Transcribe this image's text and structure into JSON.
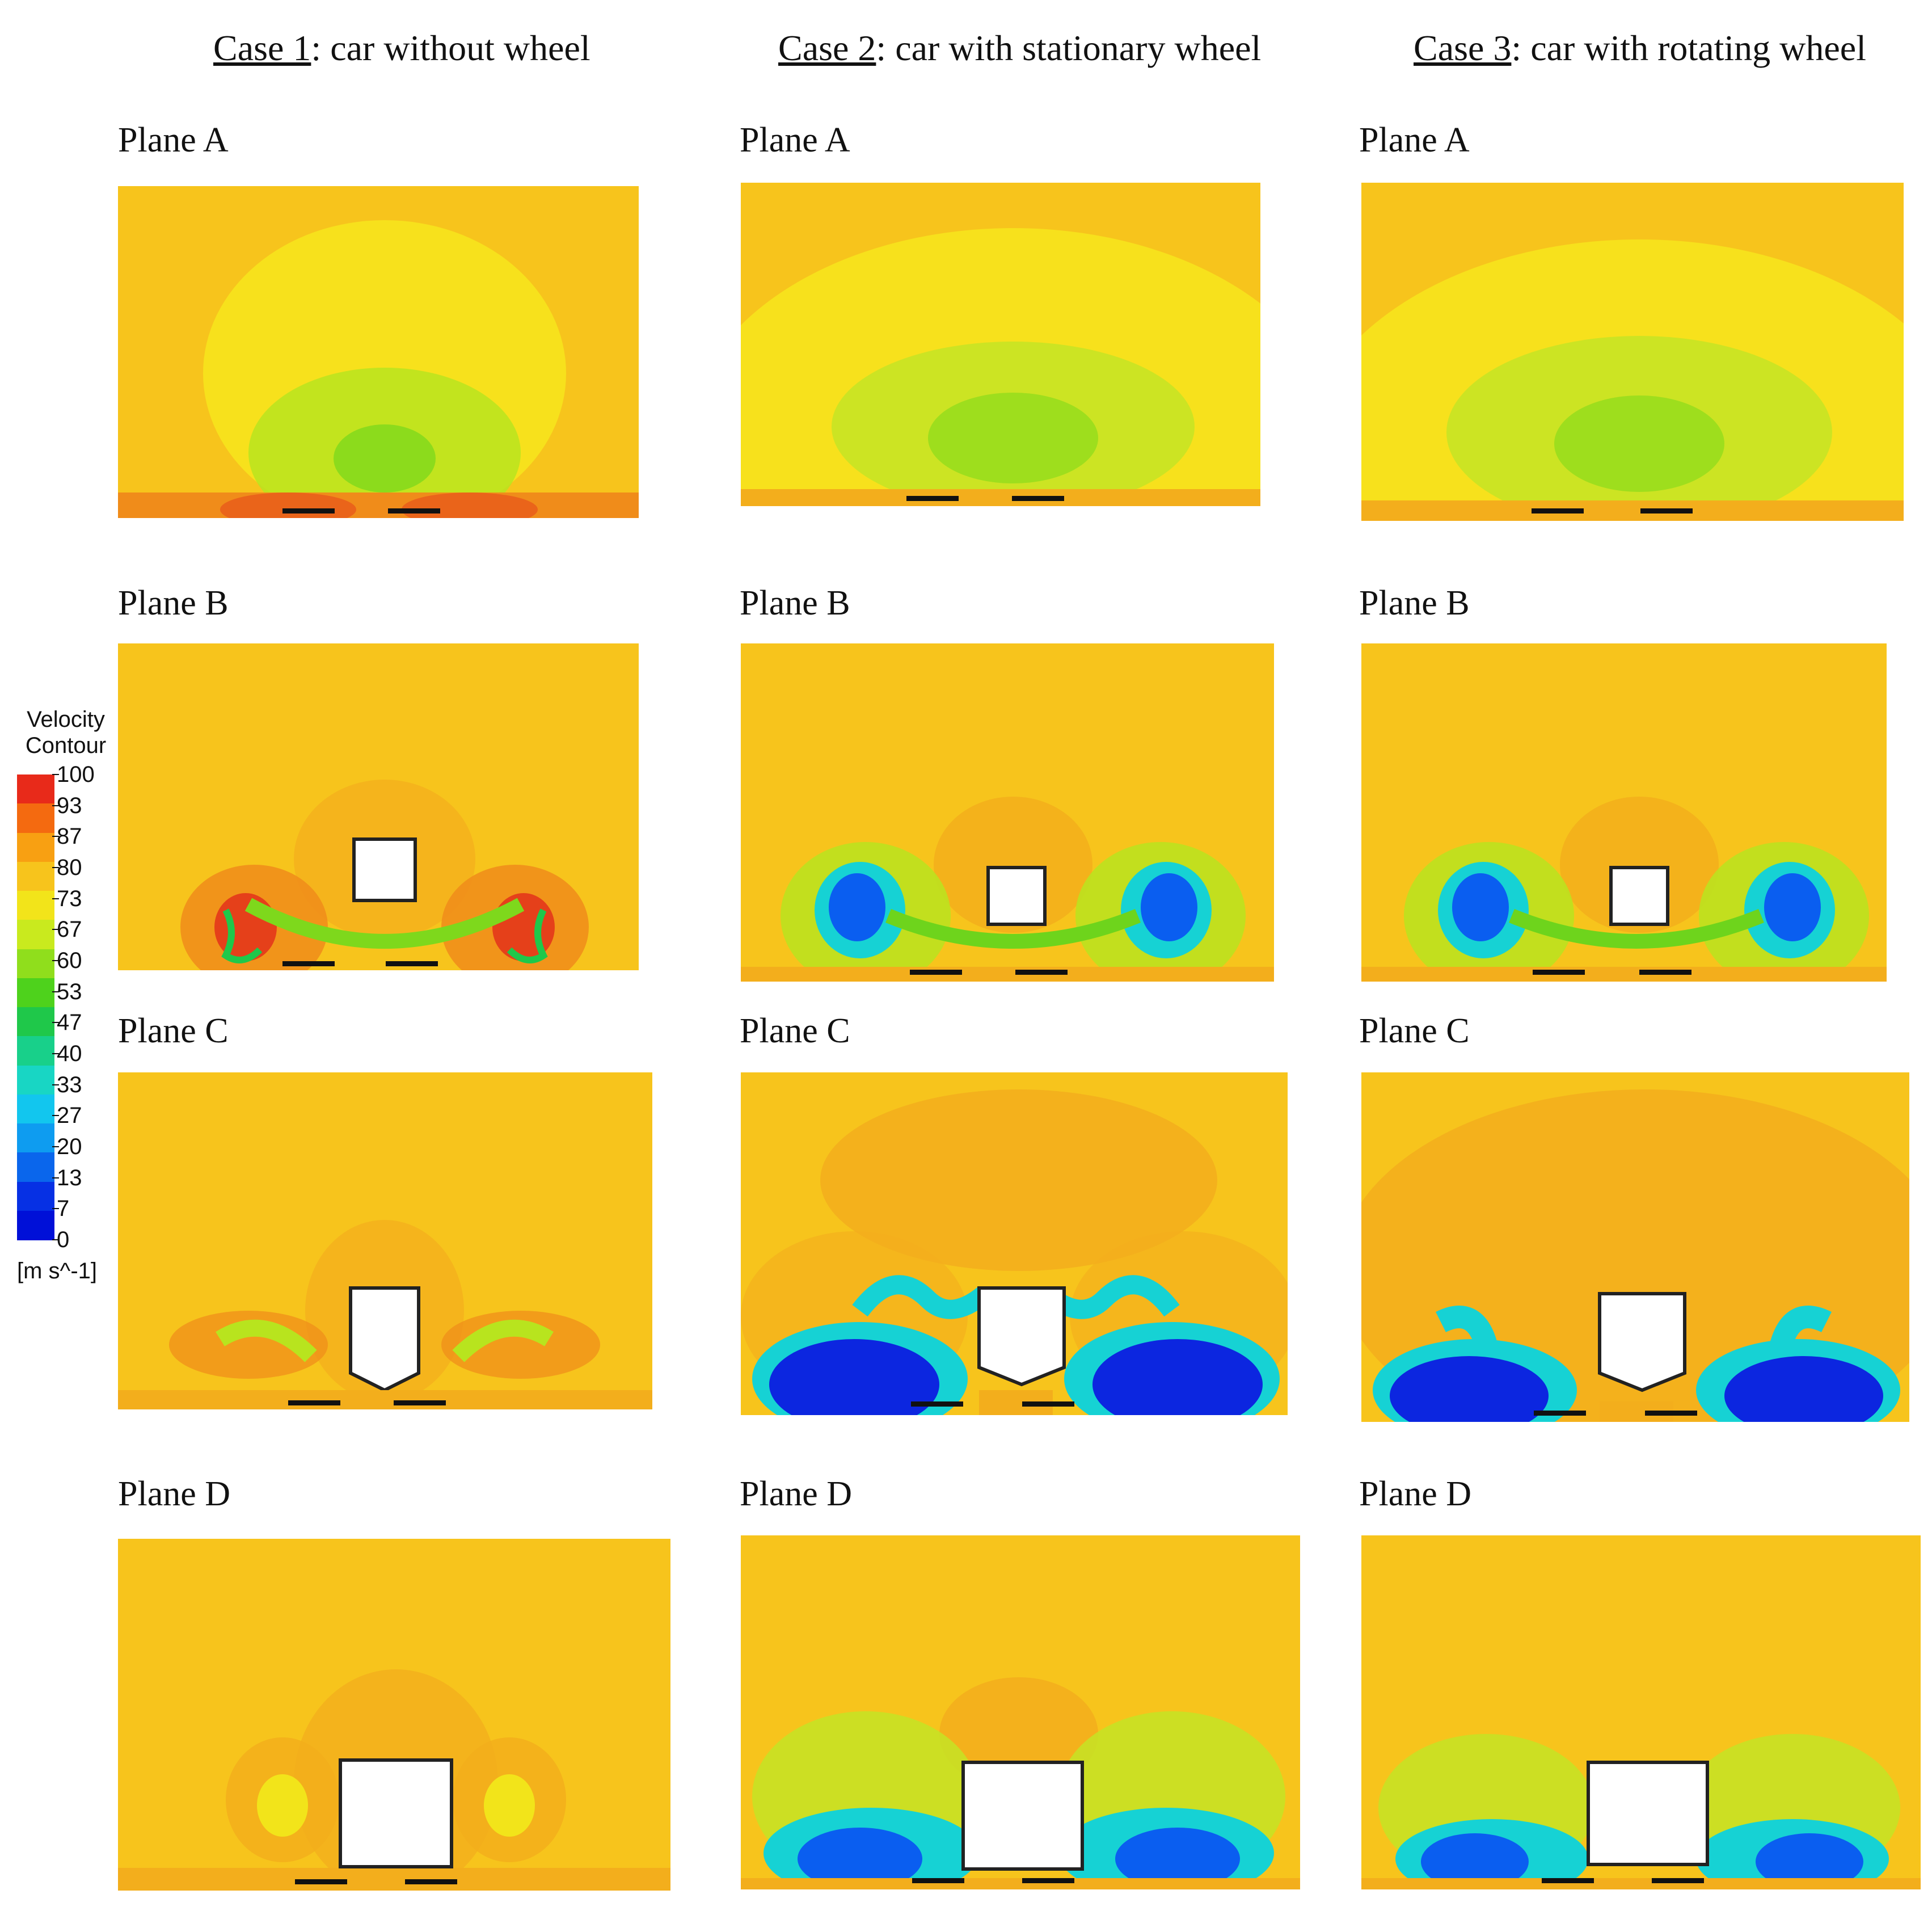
{
  "cases": [
    {
      "prefix": "Case 1",
      "suffix": ": car without wheel"
    },
    {
      "prefix": "Case 2",
      "suffix": ": car with stationary wheel"
    },
    {
      "prefix": "Case 3",
      "suffix": ": car with rotating wheel"
    }
  ],
  "planes": [
    "Plane A",
    "Plane B",
    "Plane C",
    "Plane D"
  ],
  "legend": {
    "title_line1": "Velocity",
    "title_line2": "Contour",
    "unit": "[m s^-1]",
    "ticks": [
      "100",
      "93",
      "87",
      "80",
      "73",
      "67",
      "60",
      "53",
      "47",
      "40",
      "33",
      "27",
      "20",
      "13",
      "7",
      "0"
    ],
    "colors": [
      "#e82a1a",
      "#f46a10",
      "#f8a012",
      "#f7c41c",
      "#f2e41a",
      "#c9ea1e",
      "#90de1c",
      "#4ed21c",
      "#1fc84a",
      "#18d08a",
      "#18d6c4",
      "#12c6ee",
      "#0e9cf0",
      "#0a66ec",
      "#0630e4",
      "#0010d8"
    ]
  },
  "contour_colors": {
    "background": "#f7c41c",
    "light": "#f7e11c",
    "orange": "#f3ae1c",
    "green": "#8edc1c",
    "red": "#e5401a",
    "blue": "#0a5ef0",
    "deep_blue": "#0c26e0",
    "cyan": "#16d2d4",
    "body": "#ffffff"
  }
}
